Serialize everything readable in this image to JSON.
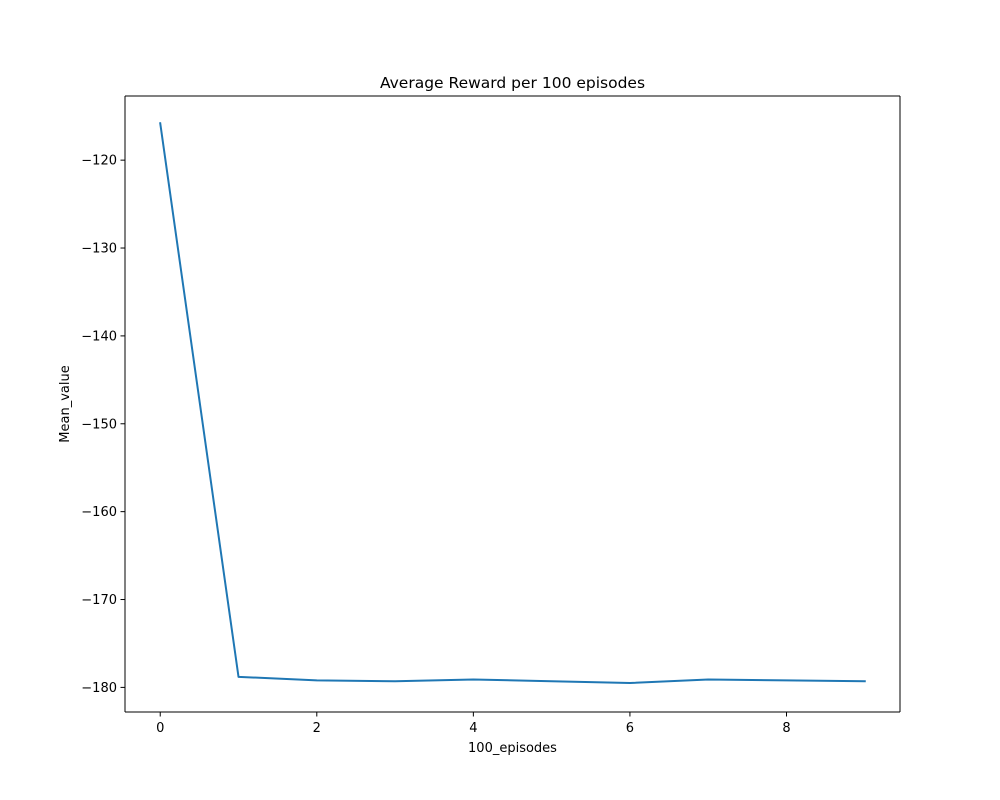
{
  "chart_data": {
    "type": "line",
    "title": "Average Reward per 100 episodes",
    "xlabel": "100_episodes",
    "ylabel": "Mean_value",
    "x": [
      0,
      1,
      2,
      3,
      4,
      5,
      6,
      7,
      8,
      9
    ],
    "series": [
      {
        "values": [
          -115.8,
          -178.8,
          -179.2,
          -179.3,
          -179.1,
          -179.3,
          -179.5,
          -179.1,
          -179.2,
          -179.3
        ],
        "color": "#1f77b4"
      }
    ],
    "xlim": [
      -0.45,
      9.45
    ],
    "ylim": [
      -182.8,
      -112.7
    ],
    "xticks": [
      0,
      2,
      4,
      6,
      8
    ],
    "xtick_labels": [
      "0",
      "2",
      "4",
      "6",
      "8"
    ],
    "yticks": [
      -120,
      -130,
      -140,
      -150,
      -160,
      -170,
      -180
    ],
    "ytick_labels": [
      "−120",
      "−130",
      "−140",
      "−150",
      "−160",
      "−170",
      "−180"
    ],
    "grid": false,
    "legend": "none"
  }
}
